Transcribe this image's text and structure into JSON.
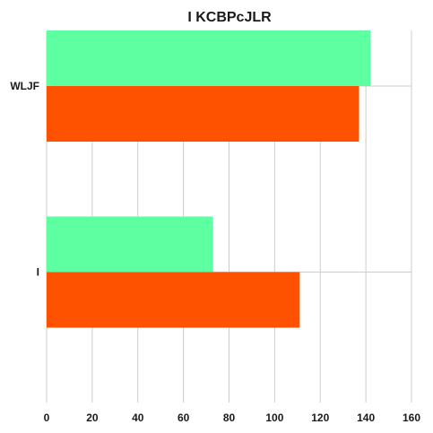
{
  "chart_data": {
    "type": "bar",
    "orientation": "horizontal",
    "title": "I KCBPcJLR",
    "xlabel": "",
    "ylabel": "",
    "categories": [
      "WLJF",
      "I"
    ],
    "series": [
      {
        "values": [
          142,
          73
        ],
        "color": "#5effa0"
      },
      {
        "values": [
          137,
          111
        ],
        "color": "#ff5200"
      }
    ],
    "xlim": [
      0,
      160
    ],
    "xticks": [
      0,
      20,
      40,
      60,
      80,
      100,
      120,
      140,
      160
    ],
    "grid": true,
    "legend": "none"
  }
}
